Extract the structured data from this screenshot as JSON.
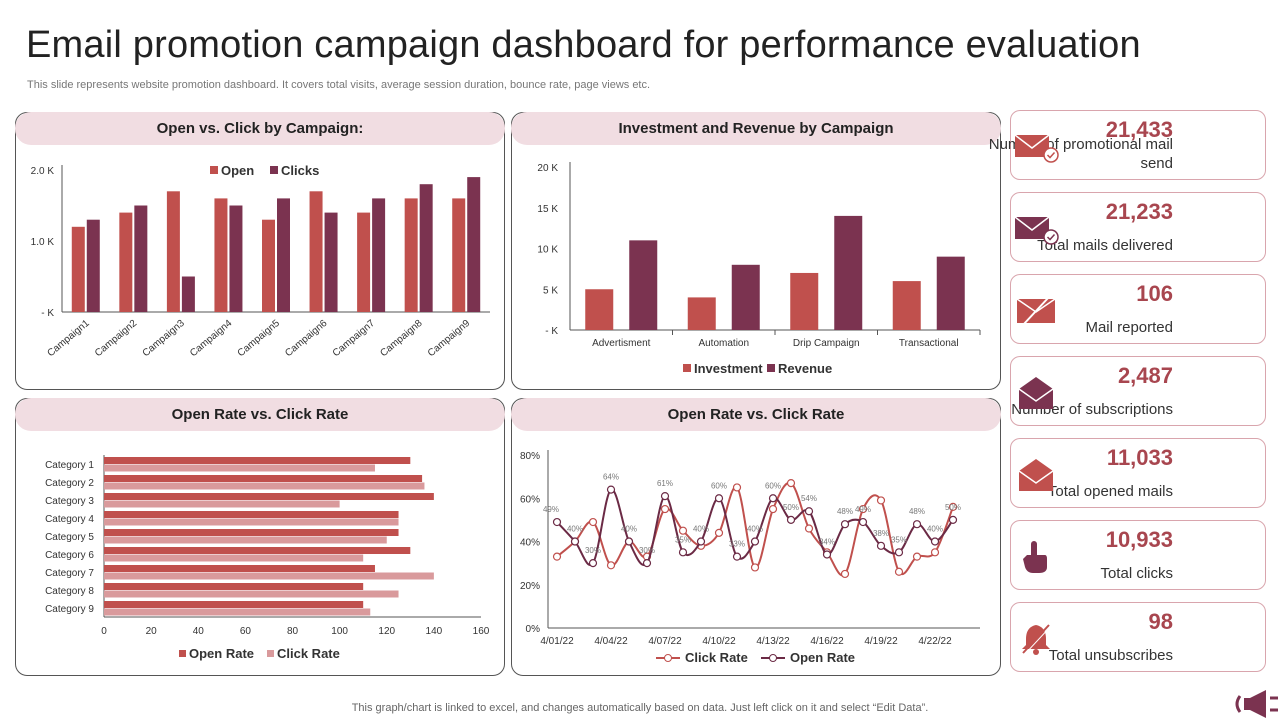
{
  "title": "Email promotion campaign dashboard for performance evaluation",
  "subtitle": "This slide represents website promotion dashboard. It covers total visits, average session duration, bounce rate, page views etc.",
  "footer": "This graph/chart is linked to excel,  and changes automatically based on data. Just left click on it and select “Edit Data”.",
  "colors": {
    "primary": "#c0504d",
    "dark": "#7b3350",
    "light": "#d99a9c",
    "pill": "#f1dde2",
    "kpi_number": "#a8464f"
  },
  "kpis": [
    {
      "value": "21,433",
      "label": "Number of promotional mail send",
      "icon": "mail-check-icon",
      "color": "#c0504d"
    },
    {
      "value": "21,233",
      "label": "Total mails delivered",
      "icon": "mail-check-icon",
      "color": "#7b3350"
    },
    {
      "value": "106",
      "label": "Mail reported",
      "icon": "mail-slash-icon",
      "color": "#c0504d"
    },
    {
      "value": "2,487",
      "label": "Number of subscriptions",
      "icon": "mail-open-icon",
      "color": "#7b3350"
    },
    {
      "value": "11,033",
      "label": "Total opened mails",
      "icon": "mail-open-icon",
      "color": "#c0504d"
    },
    {
      "value": "10,933",
      "label": "Total clicks",
      "icon": "pointer-hand-icon",
      "color": "#7b3350"
    },
    {
      "value": "98",
      "label": "Total unsubscribes",
      "icon": "bell-slash-icon",
      "color": "#c0504d"
    }
  ],
  "chart_data": [
    {
      "type": "bar",
      "title": "Open vs. Click by Campaign:",
      "categories": [
        "Campaign1",
        "Campaign2",
        "Campaign3",
        "Campaign4",
        "Campaign5",
        "Campaign6",
        "Campaign7",
        "Campaign8",
        "Campaign9"
      ],
      "series": [
        {
          "name": "Open",
          "values": [
            1200,
            1400,
            1700,
            1600,
            1300,
            1700,
            1400,
            1600,
            1600
          ],
          "color": "#c0504d"
        },
        {
          "name": "Clicks",
          "values": [
            1300,
            1500,
            500,
            1500,
            1600,
            1400,
            1600,
            1800,
            1900
          ],
          "color": "#7b3350"
        }
      ],
      "yticks": [
        "- K",
        "1.0 K",
        "2.0 K"
      ],
      "ylim": [
        0,
        2000
      ],
      "legend": "top"
    },
    {
      "type": "bar",
      "title": "Investment and Revenue by Campaign",
      "categories": [
        "Advertisment",
        "Automation",
        "Drip Campaign",
        "Transactional"
      ],
      "series": [
        {
          "name": "Investment",
          "values": [
            5000,
            4000,
            7000,
            6000
          ],
          "color": "#c0504d"
        },
        {
          "name": "Revenue",
          "values": [
            11000,
            8000,
            14000,
            9000
          ],
          "color": "#7b3350"
        }
      ],
      "yticks": [
        "- K",
        "5 K",
        "10 K",
        "15 K",
        "20 K"
      ],
      "ylim": [
        0,
        20000
      ],
      "legend": "bottom"
    },
    {
      "type": "bar",
      "orientation": "horizontal",
      "title": "Open Rate vs. Click Rate",
      "categories": [
        "Category 1",
        "Category 2",
        "Category 3",
        "Category 4",
        "Category 5",
        "Category 6",
        "Category 7",
        "Category 8",
        "Category 9"
      ],
      "series": [
        {
          "name": "Open Rate",
          "values": [
            130,
            135,
            140,
            125,
            125,
            130,
            115,
            110,
            110
          ],
          "color": "#c0504d"
        },
        {
          "name": "Click Rate",
          "values": [
            115,
            136,
            100,
            125,
            120,
            110,
            140,
            125,
            113
          ],
          "color": "#d99a9c"
        }
      ],
      "xticks": [
        "0",
        "20",
        "40",
        "60",
        "80",
        "100",
        "120",
        "140",
        "160"
      ],
      "xlim": [
        0,
        160
      ],
      "legend": "bottom"
    },
    {
      "type": "line",
      "title": "Open Rate vs. Click Rate",
      "x": [
        "4/01/22",
        "4/02/22",
        "4/03/22",
        "4/04/22",
        "4/05/22",
        "4/06/22",
        "4/07/22",
        "4/08/22",
        "4/09/22",
        "4/10/22",
        "4/11/22",
        "4/12/22",
        "4/13/22",
        "4/14/22",
        "4/15/22",
        "4/16/22",
        "4/17/22",
        "4/18/22",
        "4/19/22",
        "4/20/22",
        "4/21/22",
        "4/22/22",
        "4/23/22"
      ],
      "xticks": [
        "4/01/22",
        "4/04/22",
        "4/07/22",
        "4/10/22",
        "4/13/22",
        "4/16/22",
        "4/19/22",
        "4/22/22"
      ],
      "series": [
        {
          "name": "Click Rate",
          "values": [
            33,
            40,
            49,
            29,
            40,
            33,
            55,
            45,
            38,
            44,
            65,
            28,
            55,
            67,
            46,
            35,
            25,
            55,
            59,
            26,
            33,
            35,
            56
          ],
          "color": "#c0504d"
        },
        {
          "name": "Open Rate",
          "values": [
            49,
            40,
            30,
            64,
            40,
            30,
            61,
            35,
            40,
            60,
            33,
            40,
            60,
            50,
            54,
            34,
            48,
            49,
            38,
            35,
            48,
            40,
            50
          ],
          "color": "#6b2a45",
          "labels": [
            "49%",
            "40%",
            "30%",
            "64%",
            "40%",
            "30%",
            "61%",
            "35%",
            "40%",
            "60%",
            "33%",
            "40%",
            "60%",
            "50%",
            "54%",
            "34%",
            "48%",
            "49%",
            "38%",
            "35%",
            "48%",
            "40%",
            "50%"
          ]
        }
      ],
      "yticks": [
        "0%",
        "20%",
        "40%",
        "60%",
        "80%"
      ],
      "ylim": [
        0,
        80
      ],
      "legend": "bottom"
    }
  ]
}
